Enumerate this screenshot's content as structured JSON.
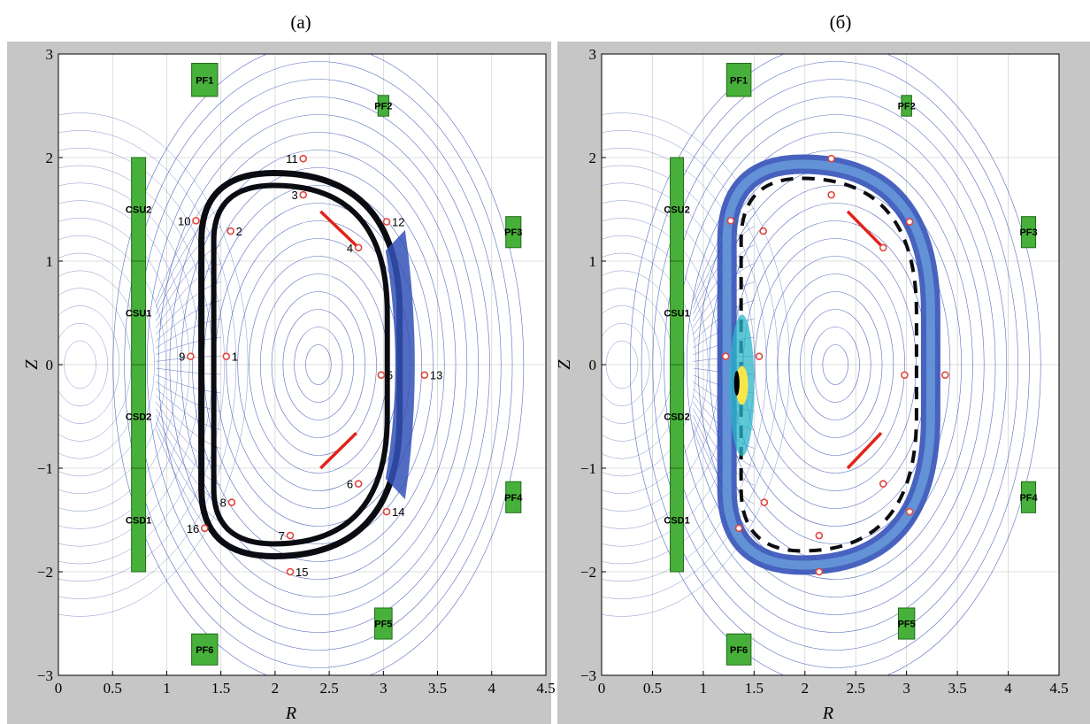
{
  "colors": {
    "frame": "#c6c6c6",
    "plot_bg": "#ffffff",
    "grid": "#d4d4d4",
    "contour": "#1f3ea6",
    "coil_fill": "#47b03a",
    "coil_stroke": "#1f6b18",
    "sensor": "#e0463c",
    "limiter": "#e2231a",
    "boundary": "#0b0b12",
    "eddy_outer": "#3452b8",
    "eddy_inner": "#6fa6e0",
    "hot": "#f7e64a",
    "hot_edge": "#29b6c8"
  },
  "chart_data": [
    {
      "panel": "a",
      "type": "contour",
      "title": "(а)",
      "xlabel": "R",
      "ylabel": "Z",
      "xlim": [
        0,
        4.5
      ],
      "ylim": [
        -3,
        3
      ],
      "xticks": [
        "0",
        "0.5",
        "1",
        "1.5",
        "2",
        "2.5",
        "3",
        "3.5",
        "4",
        "4.5"
      ],
      "yticks": [
        "3",
        "2",
        "1",
        "0",
        "−1",
        "−2",
        "−3"
      ],
      "grid": true,
      "coils": [
        {
          "name": "PF1",
          "r": 1.35,
          "z": 2.75,
          "w": 0.24,
          "h": 0.32
        },
        {
          "name": "PF2",
          "r": 3.0,
          "z": 2.5,
          "w": 0.1,
          "h": 0.2
        },
        {
          "name": "PF3",
          "r": 4.2,
          "z": 1.28,
          "w": 0.14,
          "h": 0.3
        },
        {
          "name": "PF4",
          "r": 4.2,
          "z": -1.28,
          "w": 0.14,
          "h": 0.3
        },
        {
          "name": "PF5",
          "r": 3.0,
          "z": -2.5,
          "w": 0.16,
          "h": 0.3
        },
        {
          "name": "PF6",
          "r": 1.35,
          "z": -2.75,
          "w": 0.24,
          "h": 0.3
        },
        {
          "name": "CSU2",
          "r": 0.74,
          "z": 1.5,
          "w": 0.13,
          "h": 1.0
        },
        {
          "name": "CSU1",
          "r": 0.74,
          "z": 0.5,
          "w": 0.13,
          "h": 1.0
        },
        {
          "name": "CSD2",
          "r": 0.74,
          "z": -0.5,
          "w": 0.13,
          "h": 1.0
        },
        {
          "name": "CSD1",
          "r": 0.74,
          "z": -1.5,
          "w": 0.13,
          "h": 1.0
        }
      ],
      "sensors": [
        {
          "label": "1",
          "r": 1.55,
          "z": 0.08
        },
        {
          "label": "2",
          "r": 1.59,
          "z": 1.29
        },
        {
          "label": "3",
          "r": 2.26,
          "z": 1.64
        },
        {
          "label": "4",
          "r": 2.77,
          "z": 1.13
        },
        {
          "label": "5",
          "r": 2.98,
          "z": -0.1
        },
        {
          "label": "6",
          "r": 2.77,
          "z": -1.15
        },
        {
          "label": "7",
          "r": 2.14,
          "z": -1.65
        },
        {
          "label": "8",
          "r": 1.6,
          "z": -1.33
        },
        {
          "label": "9",
          "r": 1.22,
          "z": 0.08
        },
        {
          "label": "10",
          "r": 1.27,
          "z": 1.39
        },
        {
          "label": "11",
          "r": 2.26,
          "z": 1.99
        },
        {
          "label": "12",
          "r": 3.03,
          "z": 1.38
        },
        {
          "label": "13",
          "r": 3.38,
          "z": -0.1
        },
        {
          "label": "14",
          "r": 3.03,
          "z": -1.42
        },
        {
          "label": "15",
          "r": 2.14,
          "z": -2.0
        },
        {
          "label": "16",
          "r": 1.35,
          "z": -1.58
        }
      ]
    },
    {
      "panel": "б",
      "type": "contour",
      "title": "(б)",
      "xlabel": "R",
      "ylabel": "Z",
      "xlim": [
        0,
        4.5
      ],
      "ylim": [
        -3,
        3
      ],
      "xticks": [
        "0",
        "0.5",
        "1",
        "1.5",
        "2",
        "2.5",
        "3",
        "3.5",
        "4",
        "4.5"
      ],
      "yticks": [
        "3",
        "2",
        "1",
        "0",
        "−1",
        "−2",
        "−3"
      ],
      "grid": true,
      "coils": [
        {
          "name": "PF1",
          "r": 1.35,
          "z": 2.75,
          "w": 0.24,
          "h": 0.32
        },
        {
          "name": "PF2",
          "r": 3.0,
          "z": 2.5,
          "w": 0.1,
          "h": 0.2
        },
        {
          "name": "PF3",
          "r": 4.2,
          "z": 1.28,
          "w": 0.14,
          "h": 0.3
        },
        {
          "name": "PF4",
          "r": 4.2,
          "z": -1.28,
          "w": 0.14,
          "h": 0.3
        },
        {
          "name": "PF5",
          "r": 3.0,
          "z": -2.5,
          "w": 0.16,
          "h": 0.3
        },
        {
          "name": "PF6",
          "r": 1.35,
          "z": -2.75,
          "w": 0.24,
          "h": 0.3
        },
        {
          "name": "CSU2",
          "r": 0.74,
          "z": 1.5,
          "w": 0.13,
          "h": 1.0
        },
        {
          "name": "CSU1",
          "r": 0.74,
          "z": 0.5,
          "w": 0.13,
          "h": 1.0
        },
        {
          "name": "CSD2",
          "r": 0.74,
          "z": -0.5,
          "w": 0.13,
          "h": 1.0
        },
        {
          "name": "CSD1",
          "r": 0.74,
          "z": -1.5,
          "w": 0.13,
          "h": 1.0
        }
      ],
      "sensors": [
        {
          "label": "",
          "r": 1.55,
          "z": 0.08
        },
        {
          "label": "",
          "r": 1.59,
          "z": 1.29
        },
        {
          "label": "",
          "r": 2.26,
          "z": 1.64
        },
        {
          "label": "",
          "r": 2.77,
          "z": 1.13
        },
        {
          "label": "",
          "r": 2.98,
          "z": -0.1
        },
        {
          "label": "",
          "r": 2.77,
          "z": -1.15
        },
        {
          "label": "",
          "r": 2.14,
          "z": -1.65
        },
        {
          "label": "",
          "r": 1.6,
          "z": -1.33
        },
        {
          "label": "",
          "r": 1.22,
          "z": 0.08
        },
        {
          "label": "",
          "r": 1.27,
          "z": 1.39
        },
        {
          "label": "",
          "r": 2.26,
          "z": 1.99
        },
        {
          "label": "",
          "r": 3.03,
          "z": 1.38
        },
        {
          "label": "",
          "r": 3.38,
          "z": -0.1
        },
        {
          "label": "",
          "r": 3.03,
          "z": -1.42
        },
        {
          "label": "",
          "r": 2.14,
          "z": -2.0
        },
        {
          "label": "",
          "r": 1.35,
          "z": -1.58
        }
      ]
    }
  ]
}
